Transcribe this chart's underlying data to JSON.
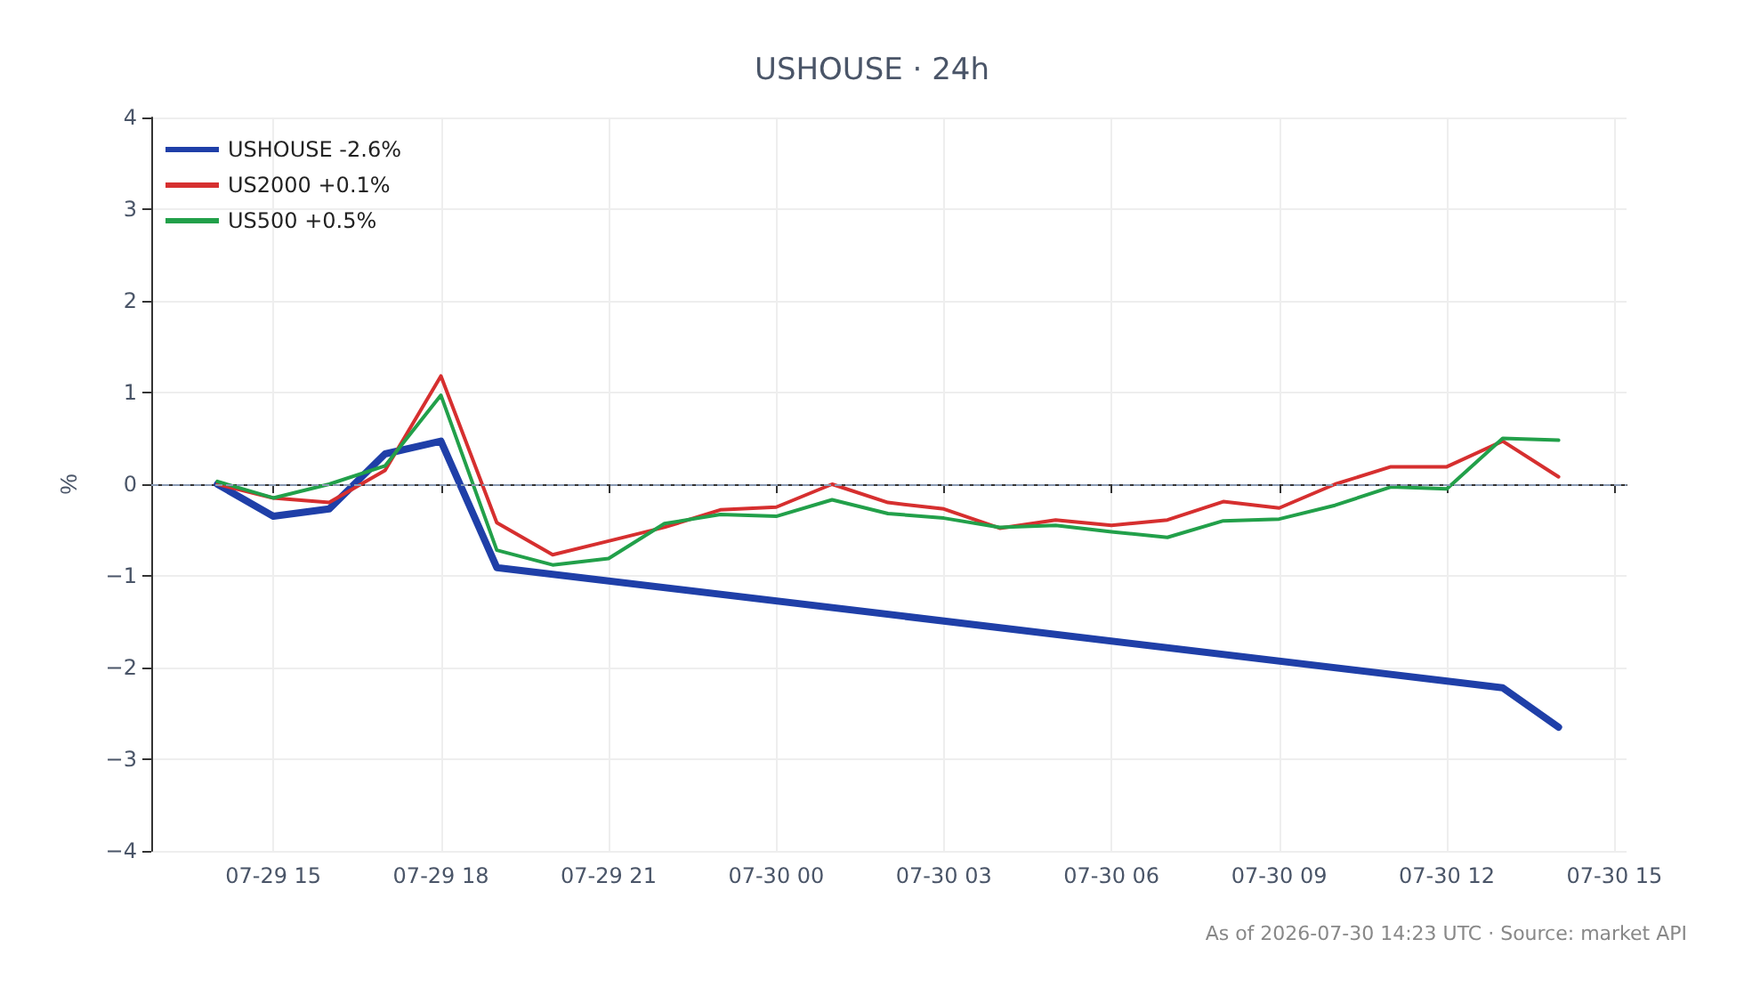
{
  "chart_data": {
    "type": "line",
    "title": "USHOUSE · 24h",
    "ylabel": "%",
    "annotations": [
      "As of 2026-07-30 14:23 UTC · Source: market API"
    ],
    "xlim": [
      "2026-07-29T12:49",
      "2026-07-30T15:13"
    ],
    "xticks": [
      {
        "value": "2026-07-29T15:00",
        "label": "07-29 15"
      },
      {
        "value": "2026-07-29T18:00",
        "label": "07-29 18"
      },
      {
        "value": "2026-07-29T21:00",
        "label": "07-29 21"
      },
      {
        "value": "2026-07-30T00:00",
        "label": "07-30 00"
      },
      {
        "value": "2026-07-30T03:00",
        "label": "07-30 03"
      },
      {
        "value": "2026-07-30T06:00",
        "label": "07-30 06"
      },
      {
        "value": "2026-07-30T09:00",
        "label": "07-30 09"
      },
      {
        "value": "2026-07-30T12:00",
        "label": "07-30 12"
      },
      {
        "value": "2026-07-30T15:00",
        "label": "07-30 15"
      }
    ],
    "ylim": [
      -4,
      4
    ],
    "yticks": [
      -4,
      -3,
      -2,
      -1,
      0,
      1,
      2,
      3,
      4
    ],
    "grid": true,
    "legend": "top left",
    "marker": "none",
    "line_style": "solid",
    "ref_lines": [
      {
        "axis": "y",
        "value": 0,
        "label": null,
        "color": "#8a9bb5",
        "line_style": "dashed"
      }
    ],
    "series": [
      {
        "name": "USHOUSE -2.6%",
        "color": "#1f3fa8",
        "x": [
          "2026-07-29T14:00",
          "2026-07-29T15:00",
          "2026-07-29T16:00",
          "2026-07-29T17:00",
          "2026-07-29T18:00",
          "2026-07-29T19:00",
          "2026-07-30T13:00",
          "2026-07-30T14:00"
        ],
        "values": [
          0,
          -0.35,
          -0.27,
          0.33,
          0.47,
          -0.91,
          -2.22,
          -2.65
        ]
      },
      {
        "name": "US2000 +0.1%",
        "color": "#d62f2f",
        "x": [
          "2026-07-29T14:00",
          "2026-07-29T15:00",
          "2026-07-29T16:00",
          "2026-07-29T17:00",
          "2026-07-29T18:00",
          "2026-07-29T19:00",
          "2026-07-29T20:00",
          "2026-07-29T21:00",
          "2026-07-29T22:00",
          "2026-07-29T23:00",
          "2026-07-30T00:00",
          "2026-07-30T01:00",
          "2026-07-30T02:00",
          "2026-07-30T03:00",
          "2026-07-30T04:00",
          "2026-07-30T05:00",
          "2026-07-30T06:00",
          "2026-07-30T07:00",
          "2026-07-30T08:00",
          "2026-07-30T09:00",
          "2026-07-30T10:00",
          "2026-07-30T11:00",
          "2026-07-30T12:00",
          "2026-07-30T13:00",
          "2026-07-30T14:00"
        ],
        "values": [
          0,
          -0.15,
          -0.2,
          0.15,
          1.18,
          -0.42,
          -0.77,
          -0.62,
          -0.47,
          -0.28,
          -0.25,
          0,
          -0.2,
          -0.27,
          -0.48,
          -0.39,
          -0.45,
          -0.39,
          -0.19,
          -0.26,
          0,
          0.19,
          0.19,
          0.47,
          0.08
        ]
      },
      {
        "name": "US500 +0.5%",
        "color": "#22a04a",
        "x": [
          "2026-07-29T14:00",
          "2026-07-29T15:00",
          "2026-07-29T16:00",
          "2026-07-29T17:00",
          "2026-07-29T18:00",
          "2026-07-29T19:00",
          "2026-07-29T20:00",
          "2026-07-29T21:00",
          "2026-07-29T22:00",
          "2026-07-29T23:00",
          "2026-07-30T00:00",
          "2026-07-30T01:00",
          "2026-07-30T02:00",
          "2026-07-30T03:00",
          "2026-07-30T04:00",
          "2026-07-30T05:00",
          "2026-07-30T06:00",
          "2026-07-30T07:00",
          "2026-07-30T08:00",
          "2026-07-30T09:00",
          "2026-07-30T10:00",
          "2026-07-30T11:00",
          "2026-07-30T12:00",
          "2026-07-30T13:00",
          "2026-07-30T14:00"
        ],
        "values": [
          0.03,
          -0.15,
          0,
          0.2,
          0.97,
          -0.72,
          -0.88,
          -0.81,
          -0.43,
          -0.33,
          -0.35,
          -0.17,
          -0.32,
          -0.37,
          -0.47,
          -0.45,
          -0.52,
          -0.58,
          -0.4,
          -0.38,
          -0.23,
          -0.03,
          -0.05,
          0.5,
          0.48
        ]
      }
    ]
  }
}
